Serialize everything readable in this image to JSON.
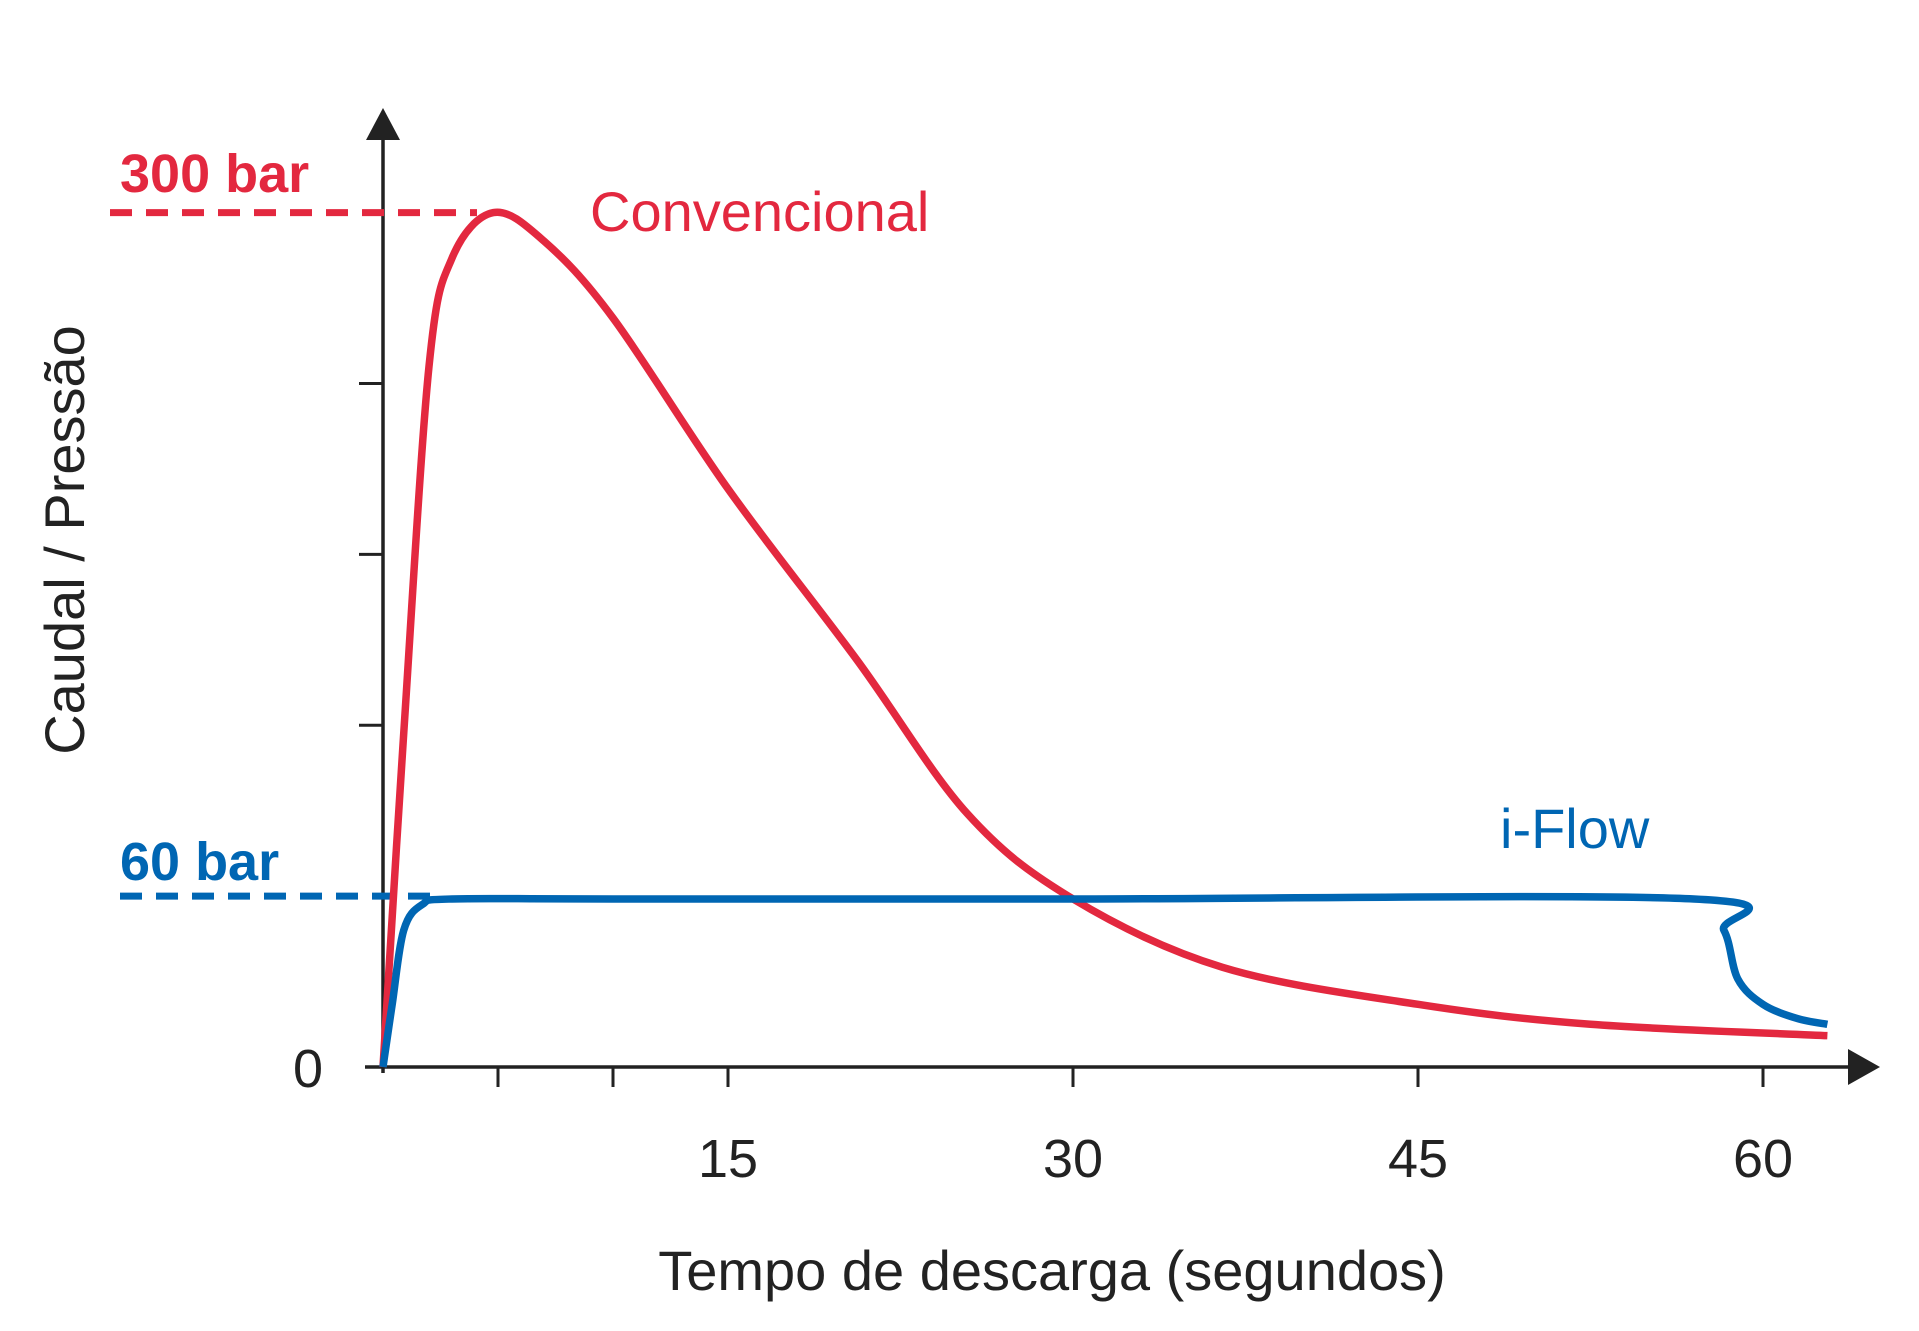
{
  "chart_data": {
    "type": "line",
    "title": "",
    "xlabel": "Tempo de descarga (segundos)",
    "ylabel": "Caudal / Pressão",
    "xlim": [
      0,
      63
    ],
    "ylim": [
      0,
      320
    ],
    "x_ticks": [
      5,
      10,
      15,
      30,
      45,
      60
    ],
    "x_tick_labels": [
      {
        "value": 15,
        "label": "15"
      },
      {
        "value": 30,
        "label": "30"
      },
      {
        "value": 45,
        "label": "45"
      },
      {
        "value": 60,
        "label": "60"
      }
    ],
    "y_ticks": [
      120,
      180,
      240
    ],
    "y_zero_label": "0",
    "grid": false,
    "reference_lines": [
      {
        "value": 300,
        "label": "300 bar",
        "color": "#e3283f"
      },
      {
        "value": 60,
        "label": "60 bar",
        "color": "#0066b3"
      }
    ],
    "series": [
      {
        "name": "Convencional",
        "color": "#e3283f",
        "x": [
          0,
          0.9,
          2,
          3,
          4.8,
          7,
          10,
          15,
          20.6,
          25.4,
          30,
          36.5,
          45,
          52.5,
          62.8
        ],
        "y": [
          0,
          117,
          246,
          284,
          300,
          290,
          263,
          203,
          143,
          89,
          59,
          35,
          22,
          15,
          11
        ]
      },
      {
        "name": "i-Flow",
        "color": "#0066b3",
        "x": [
          0,
          0.4,
          0.9,
          1.7,
          3,
          10,
          30,
          57,
          58.3,
          58.9,
          60,
          61.5,
          62.8
        ],
        "y": [
          0,
          22,
          48,
          57,
          59,
          59,
          59,
          59,
          48,
          31,
          22,
          17,
          15
        ]
      }
    ]
  }
}
